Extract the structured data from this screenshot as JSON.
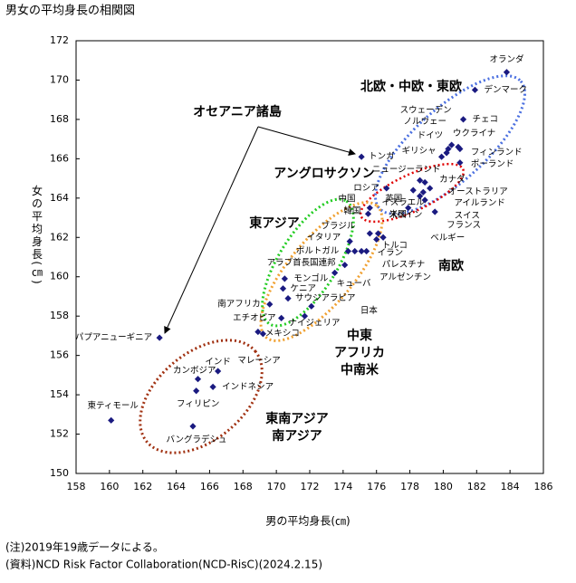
{
  "chart_data": {
    "type": "scatter",
    "title": "男女の平均身長の相関図",
    "x_label": "男の平均身長(㎝)",
    "y_label": "女の平均身長(㎝)",
    "xlim": [
      158,
      186
    ],
    "xticks": [
      158,
      160,
      162,
      164,
      166,
      168,
      170,
      172,
      174,
      176,
      178,
      180,
      182,
      184,
      186
    ],
    "ylim": [
      150,
      172
    ],
    "yticks": [
      150,
      152,
      154,
      156,
      158,
      160,
      162,
      164,
      166,
      168,
      170,
      172
    ],
    "grid": false,
    "series": [
      {
        "color": "#1a1a80",
        "labels": [
          "オランダ",
          "デンマーク",
          "チェコ",
          "スウェーデン",
          "ノルウェー",
          "ウクライナ",
          "ドイツ",
          "ギリシャ",
          "フィンランド",
          "ポーランド",
          "トンガ",
          "ニュージーランド",
          "ロシア",
          "カナダ",
          "オーストラリア",
          "アイルランド",
          "英国",
          "スイス",
          "米国",
          "フランス",
          "ベルギー",
          "中国",
          "韓国",
          "イスラエル",
          "スペイン",
          "ブラジル",
          "イタリア",
          "トルコ",
          "ポルトガル",
          "イラン",
          "パレスチナ",
          "アルゼンチン",
          "アラブ首長国連邦",
          "キューバ",
          "モンゴル",
          "ケニア",
          "サウジアラビア",
          "日本",
          "南アフリカ",
          "エチオピア",
          "ナイジェリア",
          "メキシコ",
          "マレーシア",
          "パプアニューギニア",
          "インド",
          "カンボジア",
          "インドネシア",
          "フィリピン",
          "バングラデシュ",
          "東ティモール"
        ],
        "x": [
          183.8,
          181.9,
          181.2,
          180.5,
          180.3,
          180.9,
          180.2,
          179.9,
          181.0,
          181.0,
          175.1,
          178.6,
          176.6,
          178.9,
          179.2,
          178.8,
          178.2,
          178.6,
          177.9,
          178.9,
          179.5,
          175.5,
          175.6,
          176.1,
          176.4,
          175.6,
          174.4,
          176.0,
          174.3,
          175.4,
          174.7,
          175.1,
          174.1,
          173.5,
          170.5,
          170.4,
          170.7,
          172.1,
          169.6,
          170.3,
          171.7,
          168.9,
          169.2,
          163.0,
          166.5,
          165.3,
          166.2,
          165.2,
          165.0,
          160.1
        ],
        "values": [
          170.4,
          169.5,
          168.0,
          166.7,
          166.5,
          166.6,
          166.3,
          166.1,
          166.5,
          165.8,
          166.1,
          164.9,
          164.5,
          164.8,
          164.5,
          164.3,
          164.4,
          164.1,
          163.5,
          163.9,
          163.3,
          163.2,
          163.5,
          162.2,
          162.0,
          162.2,
          161.8,
          161.9,
          161.3,
          161.3,
          161.3,
          161.3,
          160.6,
          160.2,
          159.9,
          159.4,
          158.9,
          158.5,
          158.6,
          157.9,
          158.0,
          157.2,
          157.1,
          156.9,
          155.2,
          154.8,
          154.4,
          154.2,
          152.4,
          152.7
        ]
      }
    ],
    "groups": [
      {
        "lines": [
          "オセアニア諸島"
        ],
        "color": "#a0a0a0"
      },
      {
        "lines": [
          "北欧・中欧・東欧"
        ],
        "color": "#2e3a9e"
      },
      {
        "lines": [
          "アングロサクソン"
        ],
        "color": "#5b8fd0"
      },
      {
        "lines": [
          "東アジア"
        ],
        "color": "#3aa83a"
      },
      {
        "lines": [
          "南欧"
        ],
        "color": "#e00000"
      },
      {
        "lines": [
          "中東",
          "アフリカ",
          "中南米"
        ],
        "color": "#f0a030"
      },
      {
        "lines": [
          "東南アジア",
          "南アジア"
        ],
        "color": "#a03010"
      }
    ],
    "notes": [
      "(注)2019年19歳データによる。",
      "(資料)NCD Risk Factor Collaboration(NCD-RisC)(2024.2.15)"
    ]
  }
}
